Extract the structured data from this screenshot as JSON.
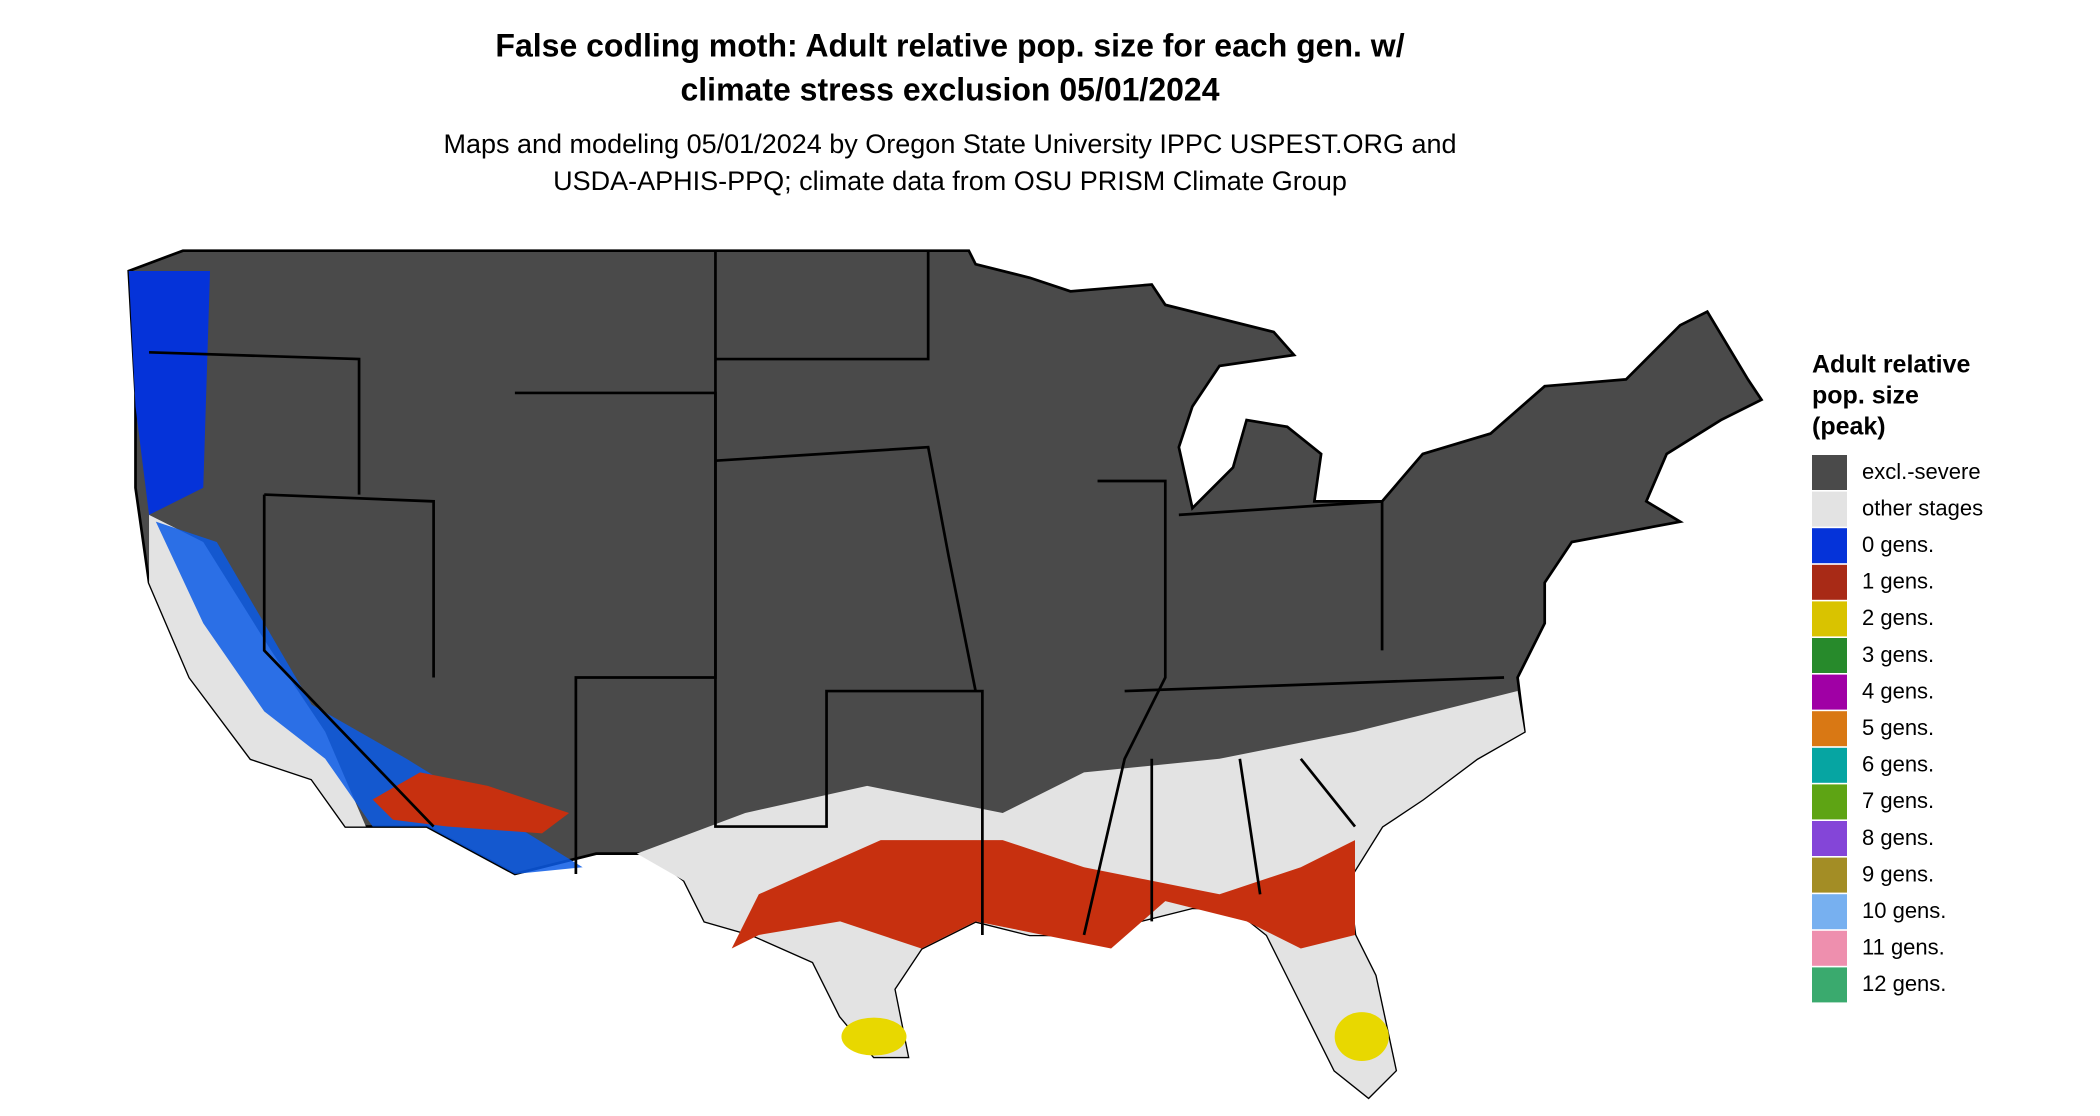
{
  "header": {
    "title": [
      "False codling moth: Adult relative pop. size for each gen. w/",
      "climate stress exclusion 05/01/2024"
    ],
    "subtitle": [
      "Maps and modeling 05/01/2024 by Oregon State University IPPC USPEST.ORG and",
      "USDA-APHIS-PPQ; climate data from OSU PRISM Climate Group"
    ]
  },
  "legend": {
    "title": [
      "Adult relative",
      "pop. size",
      "(peak)"
    ],
    "items": [
      {
        "label": "excl.-severe",
        "color": "#4a4a4a"
      },
      {
        "label": "other stages",
        "color": "#e3e3e3"
      },
      {
        "label": "0 gens.",
        "color": "#0533d9"
      },
      {
        "label": "1 gens.",
        "color": "#a82a16"
      },
      {
        "label": "2 gens.",
        "color": "#d9c300"
      },
      {
        "label": "3 gens.",
        "color": "#278a2b"
      },
      {
        "label": "4 gens.",
        "color": "#a000a5"
      },
      {
        "label": "5 gens.",
        "color": "#d97814"
      },
      {
        "label": "6 gens.",
        "color": "#06a5a2"
      },
      {
        "label": "7 gens.",
        "color": "#5ea414"
      },
      {
        "label": "8 gens.",
        "color": "#8445d8"
      },
      {
        "label": "9 gens.",
        "color": "#a38d25"
      },
      {
        "label": "10 gens.",
        "color": "#77b0f0"
      },
      {
        "label": "11 gens.",
        "color": "#ee8fae"
      },
      {
        "label": "12 gens.",
        "color": "#3aaa6e"
      }
    ]
  }
}
